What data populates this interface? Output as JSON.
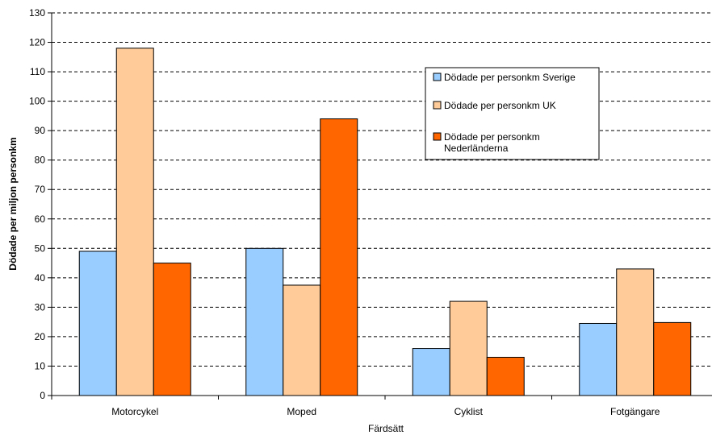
{
  "chart_data": {
    "type": "bar",
    "title": "",
    "xlabel": "Färdsätt",
    "ylabel": "Dödade per miljon personkm",
    "categories": [
      "Motorcykel",
      "Moped",
      "Cyklist",
      "Fotgängare"
    ],
    "ylim": [
      0,
      130
    ],
    "yticks": [
      0,
      10,
      20,
      30,
      40,
      50,
      60,
      70,
      80,
      90,
      100,
      110,
      120,
      130
    ],
    "grid": true,
    "legend_position": "top-right",
    "series": [
      {
        "name": "Dödade per personkm Sverige",
        "color": "#99ccff",
        "values": [
          49,
          50,
          16,
          24.5
        ]
      },
      {
        "name": "Dödade per personkm UK",
        "color": "#ffcc99",
        "values": [
          118,
          37.5,
          32,
          43
        ]
      },
      {
        "name": "Dödade per personkm Nederländerna",
        "name_lines": [
          "Dödade per personkm",
          "Nederländerna"
        ],
        "color": "#ff6600",
        "values": [
          45,
          94,
          13,
          24.8
        ]
      }
    ]
  }
}
